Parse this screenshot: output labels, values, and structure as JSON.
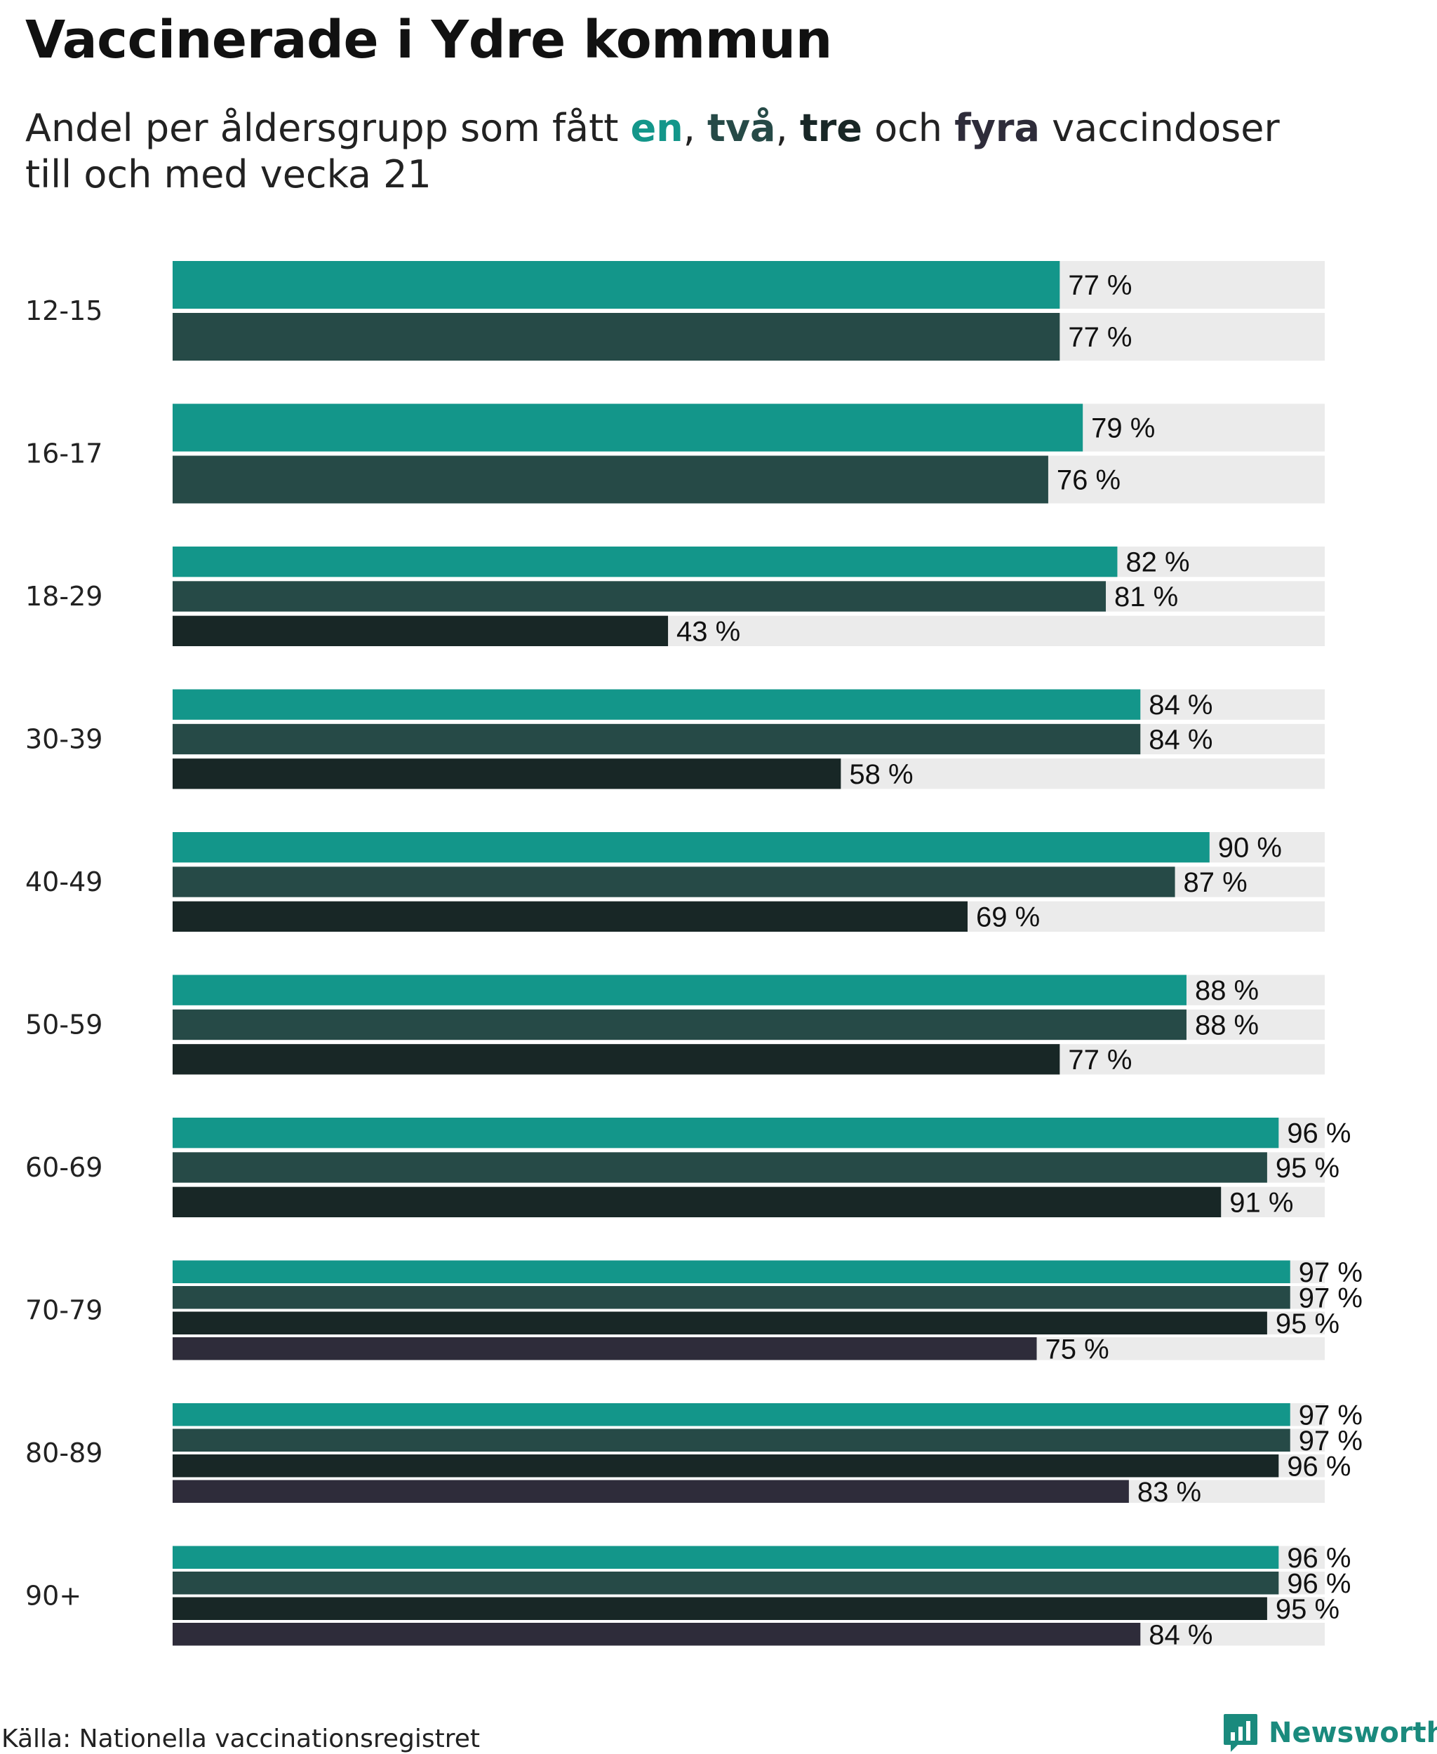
{
  "title": "Vaccinerade i Ydre kommun",
  "subtitle": {
    "prefix": "Andel per åldersgrupp som fått ",
    "kw1": "en",
    "sep1": ", ",
    "kw2": "två",
    "sep2": ", ",
    "kw3": "tre",
    "sep3": " och ",
    "kw4": "fyra",
    "suffix": " vaccindoser",
    "line2": "till och med vecka 21"
  },
  "source": "Källa: Nationella vaccinationsregistret",
  "brand": "Newsworthy",
  "colors": {
    "dose1": "#13968a",
    "dose2": "#264a47",
    "dose3": "#182726",
    "dose4": "#2e2c3a",
    "track": "#ebebeb",
    "brand": "#1a8a7d"
  },
  "chart_data": {
    "type": "bar",
    "orientation": "horizontal",
    "xlim": [
      0,
      100
    ],
    "unit": "%",
    "grid": false,
    "legend": "none (doses named by colored words in subtitle)",
    "categories": [
      "12-15",
      "16-17",
      "18-29",
      "30-39",
      "40-49",
      "50-59",
      "60-69",
      "70-79",
      "80-89",
      "90+"
    ],
    "series": [
      {
        "name": "en",
        "values": [
          77,
          79,
          82,
          84,
          90,
          88,
          96,
          97,
          97,
          96
        ]
      },
      {
        "name": "två",
        "values": [
          77,
          76,
          81,
          84,
          87,
          88,
          95,
          97,
          97,
          96
        ]
      },
      {
        "name": "tre",
        "values": [
          null,
          null,
          43,
          58,
          69,
          77,
          91,
          95,
          96,
          95
        ]
      },
      {
        "name": "fyra",
        "values": [
          null,
          null,
          null,
          null,
          null,
          null,
          null,
          75,
          83,
          84
        ]
      }
    ]
  }
}
